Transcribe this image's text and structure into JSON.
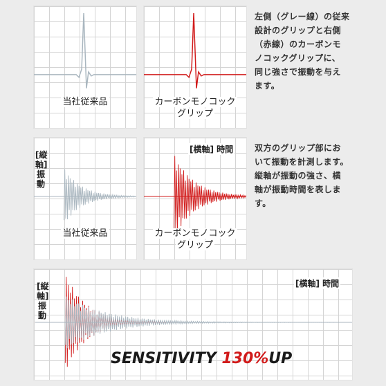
{
  "colors": {
    "gray_line": "#a9b6bf",
    "red_line": "#d11a1a",
    "grid": "#d4d4d4"
  },
  "top_left": {
    "caption": "当社従来品"
  },
  "top_right": {
    "caption_line1": "カーボンモノコック",
    "caption_line2": "グリップ"
  },
  "desc1": {
    "lines": [
      "左側（グレー線）の従来",
      "設計のグリップと右側",
      "（赤線）のカーボンモ",
      "ノコックグリップに、",
      "同じ強さで振動を与え",
      "ます。"
    ]
  },
  "desc2": {
    "lines": [
      "双方のグリップ部にお",
      "いて振動を計測します。",
      "縦軸が振動の強さ、横",
      "軸が振動時間を表しま",
      "す。"
    ]
  },
  "mid_left": {
    "caption": "当社従来品",
    "vaxis": [
      "[縦",
      "軸]",
      "振",
      "動"
    ]
  },
  "mid_right": {
    "caption_line1": "カーボンモノコック",
    "caption_line2": "グリップ",
    "haxis": "[横軸] 時間"
  },
  "bottom": {
    "vaxis": [
      "[縦",
      "軸]",
      "振",
      "動"
    ],
    "haxis": "[横軸] 時間"
  },
  "sensitivity": {
    "word": "SENSITIVITY ",
    "percent": "130%",
    "up": "UP"
  }
}
